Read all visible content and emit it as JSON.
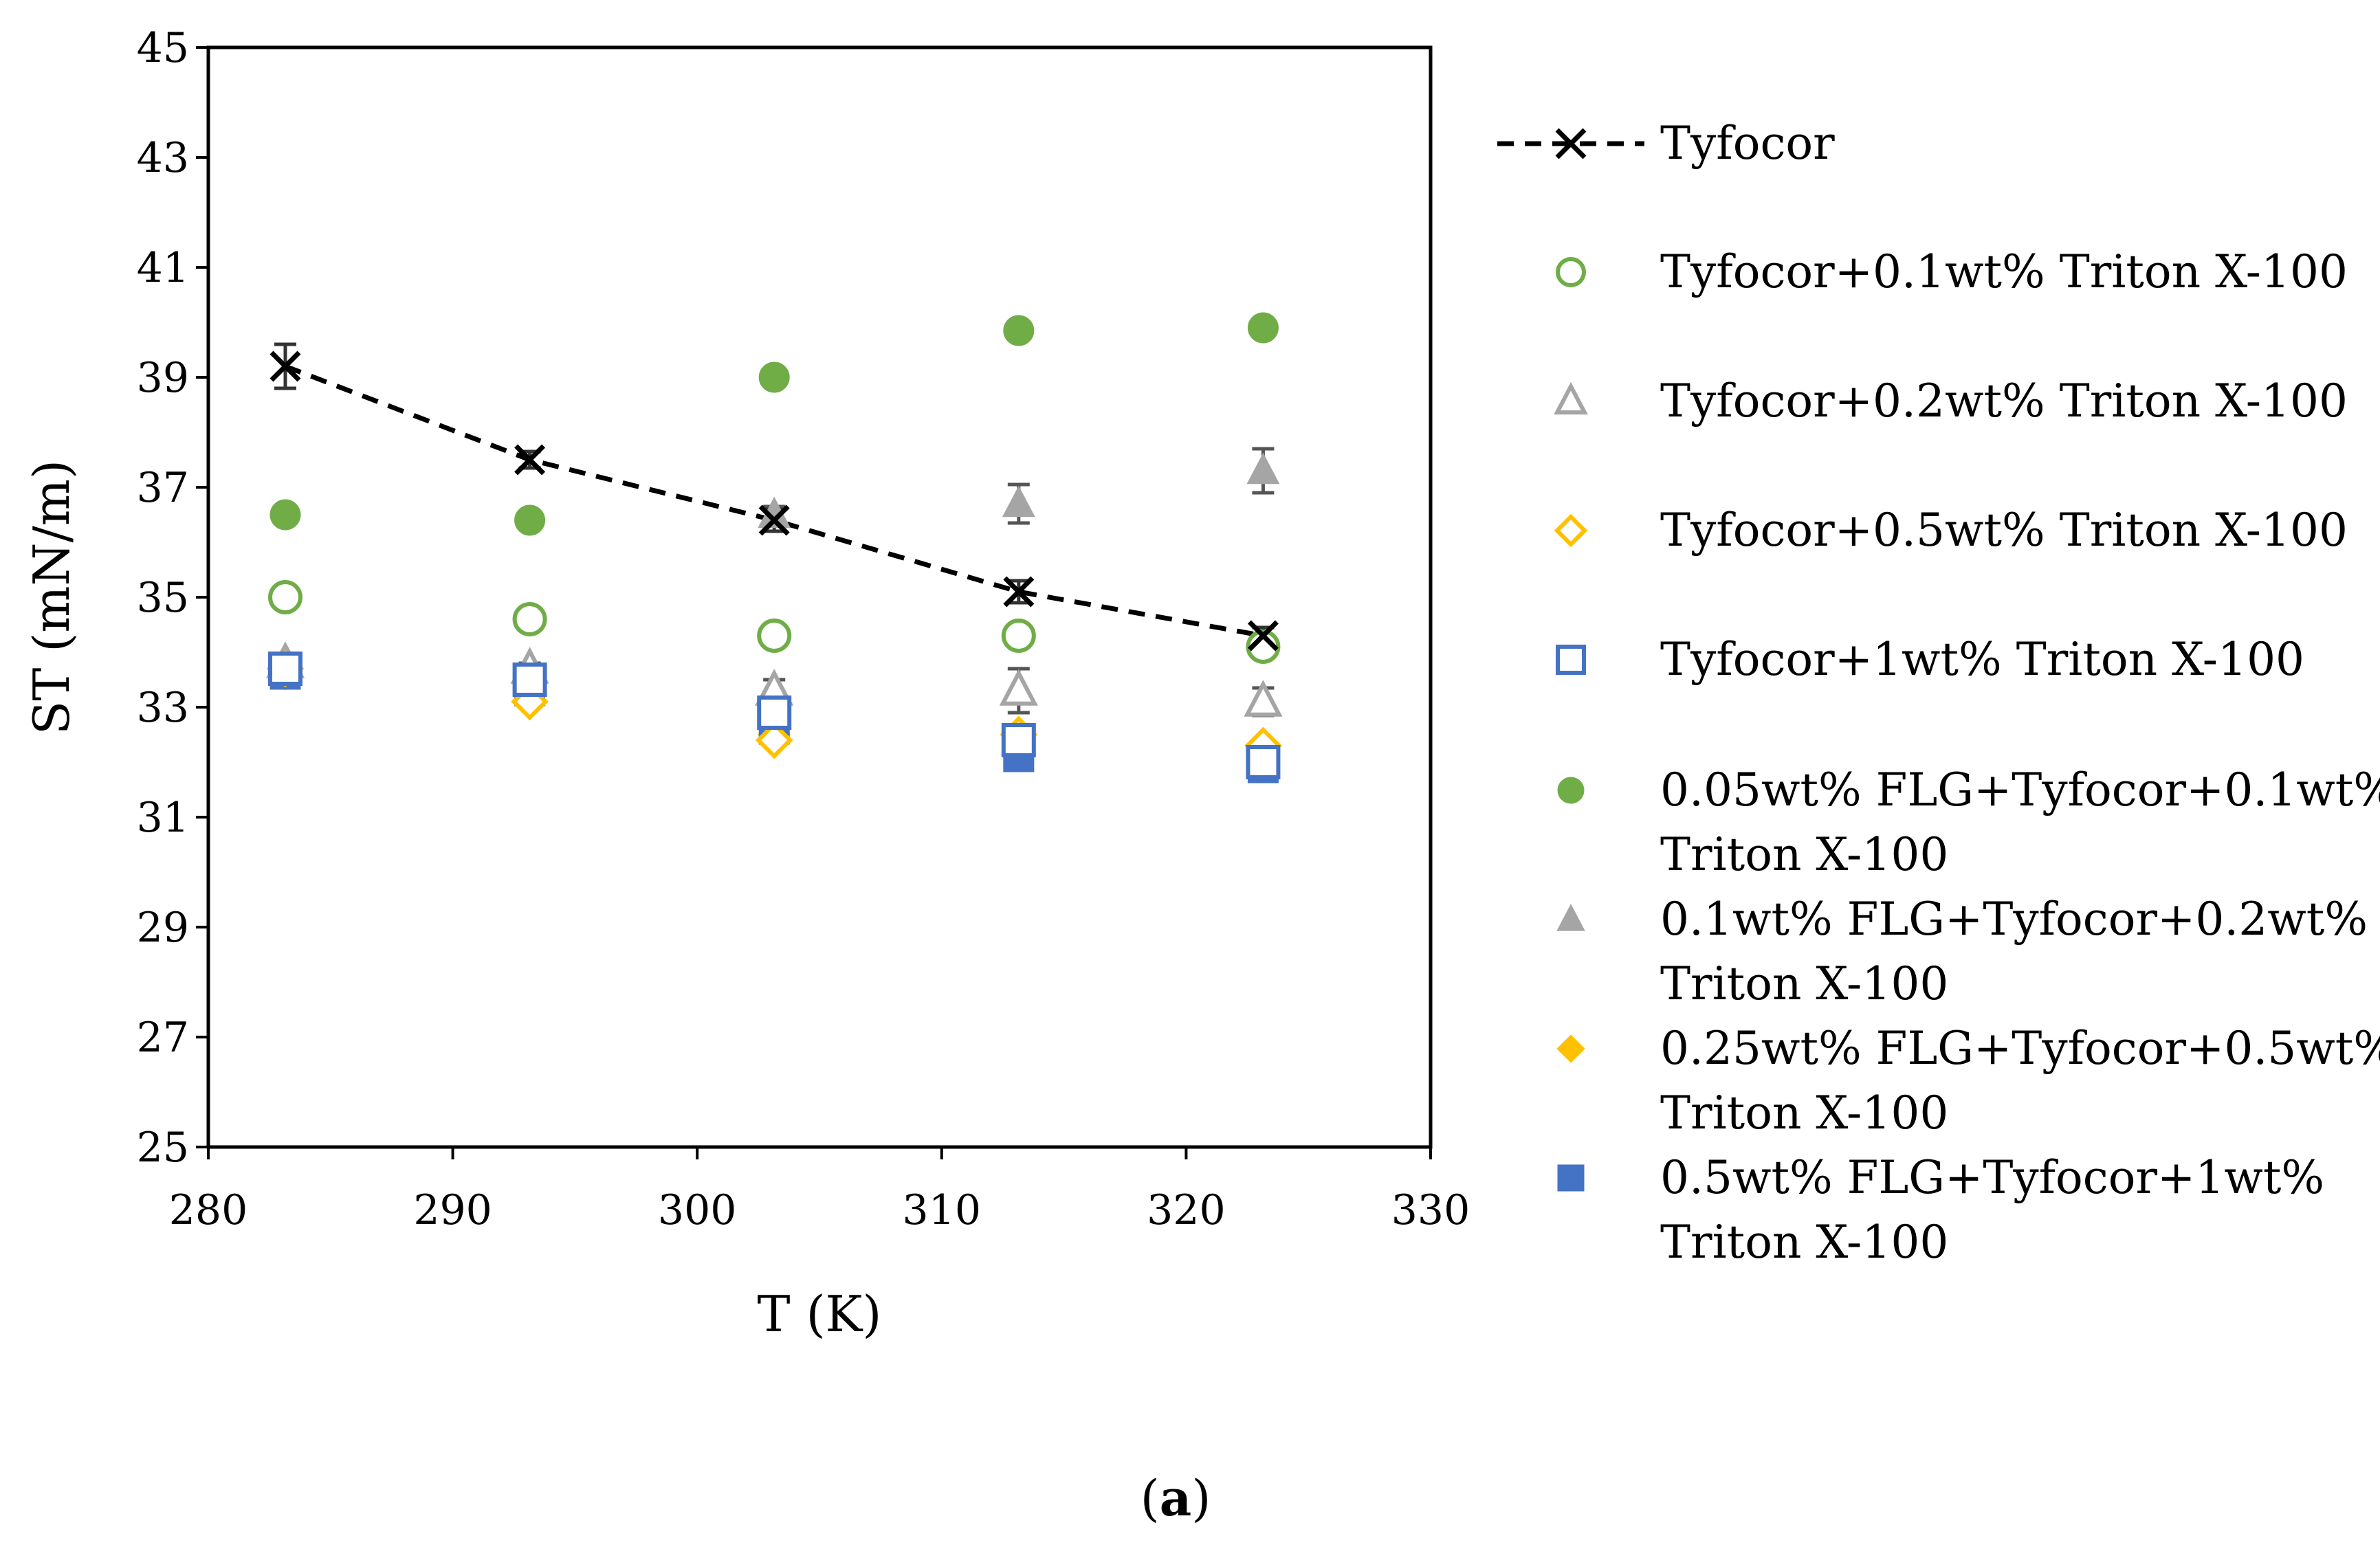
{
  "chart_data": {
    "type": "scatter",
    "title": "",
    "xlabel": "T (K)",
    "ylabel": "ST (mN/m)",
    "xlim": [
      280,
      330
    ],
    "ylim": [
      25,
      45
    ],
    "x_ticks": [
      "280",
      "290",
      "300",
      "310",
      "320",
      "330"
    ],
    "y_ticks": [
      "25",
      "27",
      "29",
      "31",
      "33",
      "35",
      "37",
      "39",
      "41",
      "43",
      "45"
    ],
    "legend_position": "right",
    "caption_letter": "a",
    "caption_open": "(",
    "caption_close": ")",
    "series": [
      {
        "name": "Tyfocor",
        "legend_lines": [
          "Tyfocor"
        ],
        "marker": "x",
        "filled": false,
        "line": "dashed",
        "color": "#000000",
        "x": [
          283.15,
          293.15,
          303.15,
          313.15,
          323.15
        ],
        "y": [
          39.2,
          37.5,
          36.4,
          35.1,
          34.3
        ],
        "err": [
          0.4,
          0.15,
          0.2,
          0.2,
          0.15
        ]
      },
      {
        "name": "Tyfocor+0.1wt% Triton X-100",
        "legend_lines": [
          "Tyfocor+0.1wt% Triton X-100"
        ],
        "marker": "circle",
        "filled": false,
        "line": "none",
        "color": "#70ad47",
        "x": [
          283.15,
          293.15,
          303.15,
          313.15,
          323.15
        ],
        "y": [
          35.0,
          34.6,
          34.3,
          34.3,
          34.1
        ],
        "err": [
          0,
          0,
          0,
          0,
          0
        ]
      },
      {
        "name": "Tyfocor+0.2wt% Triton X-100",
        "legend_lines": [
          "Tyfocor+0.2wt% Triton X-100"
        ],
        "marker": "triangle",
        "filled": false,
        "line": "none",
        "color": "#a5a5a5",
        "x": [
          283.15,
          293.15,
          303.15,
          313.15,
          323.15
        ],
        "y": [
          33.8,
          33.7,
          33.3,
          33.3,
          33.1
        ],
        "err": [
          0.1,
          0.1,
          0.2,
          0.4,
          0.25
        ]
      },
      {
        "name": "Tyfocor+0.5wt% Triton X-100",
        "legend_lines": [
          "Tyfocor+0.5wt% Triton X-100"
        ],
        "marker": "diamond",
        "filled": false,
        "line": "none",
        "color": "#ffc000",
        "x": [
          283.15,
          293.15,
          303.15,
          313.15,
          323.15
        ],
        "y": [
          33.7,
          33.1,
          32.4,
          32.5,
          32.3
        ],
        "err": [
          0,
          0,
          0,
          0,
          0
        ]
      },
      {
        "name": "Tyfocor+1wt% Triton X-100",
        "legend_lines": [
          "Tyfocor+1wt% Triton X-100"
        ],
        "marker": "square",
        "filled": false,
        "line": "none",
        "color": "#4472c4",
        "x": [
          283.15,
          293.15,
          303.15,
          313.15,
          323.15
        ],
        "y": [
          33.7,
          33.5,
          32.9,
          32.4,
          32.0
        ],
        "err": [
          0,
          0,
          0,
          0,
          0
        ]
      },
      {
        "name": "0.05wt% FLG+Tyfocor+0.1wt% Triton X-100",
        "legend_lines": [
          "0.05wt% FLG+Tyfocor+0.1wt%",
          "Triton X-100"
        ],
        "marker": "circle",
        "filled": true,
        "line": "none",
        "color": "#70ad47",
        "x": [
          283.15,
          293.15,
          303.15,
          313.15,
          323.15
        ],
        "y": [
          36.5,
          36.4,
          39.0,
          39.85,
          39.9
        ],
        "err": [
          0,
          0,
          0,
          0,
          0
        ]
      },
      {
        "name": "0.1wt% FLG+Tyfocor+0.2wt% Triton X-100",
        "legend_lines": [
          "0.1wt% FLG+Tyfocor+0.2wt%",
          "Triton X-100"
        ],
        "marker": "triangle",
        "filled": true,
        "line": "none",
        "color": "#a5a5a5",
        "x": [
          283.15,
          293.15,
          303.15,
          313.15,
          323.15
        ],
        "y": [
          33.8,
          33.7,
          36.5,
          36.7,
          37.3
        ],
        "err": [
          0,
          0,
          0.15,
          0.35,
          0.4
        ]
      },
      {
        "name": "0.25wt% FLG+Tyfocor+0.5wt% Triton X-100",
        "legend_lines": [
          "0.25wt% FLG+Tyfocor+0.5wt%",
          "Triton X-100"
        ],
        "marker": "diamond",
        "filled": true,
        "line": "none",
        "color": "#ffc000",
        "x": [
          283.15,
          293.15,
          303.15,
          313.15,
          323.15
        ],
        "y": [
          33.6,
          33.1,
          32.5,
          32.5,
          32.3
        ],
        "err": [
          0,
          0,
          0,
          0,
          0
        ]
      },
      {
        "name": "0.5wt% FLG+Tyfocor+1wt% Triton X-100",
        "legend_lines": [
          "0.5wt% FLG+Tyfocor+1wt%",
          "Triton X-100"
        ],
        "marker": "square",
        "filled": true,
        "line": "none",
        "color": "#4472c4",
        "x": [
          283.15,
          293.15,
          303.15,
          313.15,
          323.15
        ],
        "y": [
          33.6,
          33.3,
          32.6,
          32.1,
          31.9
        ],
        "err": [
          0,
          0,
          0,
          0,
          0
        ]
      }
    ]
  }
}
